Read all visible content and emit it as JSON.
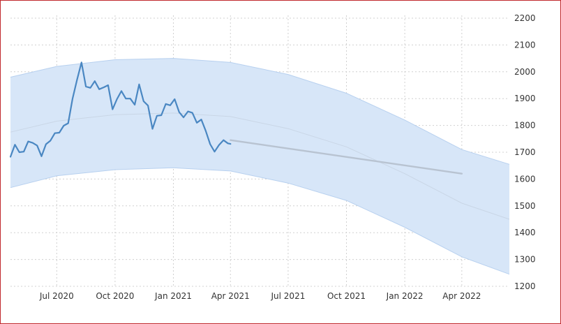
{
  "chart_data": {
    "type": "line",
    "title": "",
    "xlabel": "",
    "ylabel": "",
    "grid": true,
    "y_axis_position": "right",
    "ylim": [
      1200,
      2200
    ],
    "y_ticks": [
      "2200",
      "2100",
      "2000",
      "1900",
      "1800",
      "1700",
      "1600",
      "1500",
      "1400",
      "1300",
      "1200"
    ],
    "x_range": [
      "2020-04-19",
      "2022-06-15"
    ],
    "x_ticks": [
      {
        "label": "Jul 2020",
        "date": "2020-07-01"
      },
      {
        "label": "Oct 2020",
        "date": "2020-10-01"
      },
      {
        "label": "Jan 2021",
        "date": "2021-01-01"
      },
      {
        "label": "Apr 2021",
        "date": "2021-04-01"
      },
      {
        "label": "Jul 2021",
        "date": "2021-07-01"
      },
      {
        "label": "Oct 2021",
        "date": "2021-10-01"
      },
      {
        "label": "Jan 2022",
        "date": "2022-01-01"
      },
      {
        "label": "Apr 2022",
        "date": "2022-04-01"
      }
    ],
    "colors": {
      "actual": "#4a87c2",
      "forecast": "#b8c3d1",
      "band_fill": "#d7e6f8",
      "band_edge": "#b7d0ef",
      "trend": "#c9d6e6",
      "grid": "#d0d0d0"
    },
    "series": [
      {
        "role": "actual",
        "x": [
          "2020-04-19",
          "2020-04-26",
          "2020-05-03",
          "2020-05-10",
          "2020-05-17",
          "2020-05-24",
          "2020-05-31",
          "2020-06-07",
          "2020-06-14",
          "2020-06-21",
          "2020-06-28",
          "2020-07-05",
          "2020-07-12",
          "2020-07-19",
          "2020-07-26",
          "2020-08-02",
          "2020-08-09",
          "2020-08-16",
          "2020-08-23",
          "2020-08-30",
          "2020-09-06",
          "2020-09-13",
          "2020-09-20",
          "2020-09-27",
          "2020-10-04",
          "2020-10-11",
          "2020-10-18",
          "2020-10-25",
          "2020-11-01",
          "2020-11-08",
          "2020-11-15",
          "2020-11-22",
          "2020-11-29",
          "2020-12-06",
          "2020-12-13",
          "2020-12-20",
          "2020-12-27",
          "2021-01-03",
          "2021-01-10",
          "2021-01-17",
          "2021-01-24",
          "2021-01-31",
          "2021-02-07",
          "2021-02-14",
          "2021-02-21",
          "2021-02-28",
          "2021-03-07",
          "2021-03-14",
          "2021-03-21",
          "2021-03-28",
          "2021-04-01"
        ],
        "y": [
          1683,
          1728,
          1700,
          1702,
          1740,
          1735,
          1725,
          1685,
          1730,
          1743,
          1771,
          1773,
          1799,
          1808,
          1900,
          1970,
          2035,
          1945,
          1940,
          1965,
          1935,
          1942,
          1950,
          1860,
          1898,
          1928,
          1900,
          1900,
          1877,
          1953,
          1890,
          1874,
          1787,
          1836,
          1838,
          1880,
          1875,
          1898,
          1850,
          1830,
          1852,
          1847,
          1810,
          1822,
          1780,
          1730,
          1702,
          1727,
          1745,
          1733,
          1731
        ]
      },
      {
        "role": "forecast",
        "x": [
          "2021-04-01",
          "2022-04-01"
        ],
        "y": [
          1745,
          1620
        ]
      }
    ],
    "band": {
      "x": [
        "2020-04-19",
        "2020-07-01",
        "2020-10-01",
        "2021-01-01",
        "2021-04-01",
        "2021-07-01",
        "2021-10-01",
        "2022-01-01",
        "2022-04-01",
        "2022-06-15"
      ],
      "upper": [
        1980,
        2020,
        2045,
        2050,
        2035,
        1990,
        1920,
        1820,
        1710,
        1655
      ],
      "lower": [
        1568,
        1612,
        1635,
        1642,
        1630,
        1585,
        1520,
        1420,
        1310,
        1245
      ],
      "trend": [
        1775,
        1816,
        1840,
        1846,
        1833,
        1788,
        1720,
        1620,
        1510,
        1450
      ]
    }
  }
}
